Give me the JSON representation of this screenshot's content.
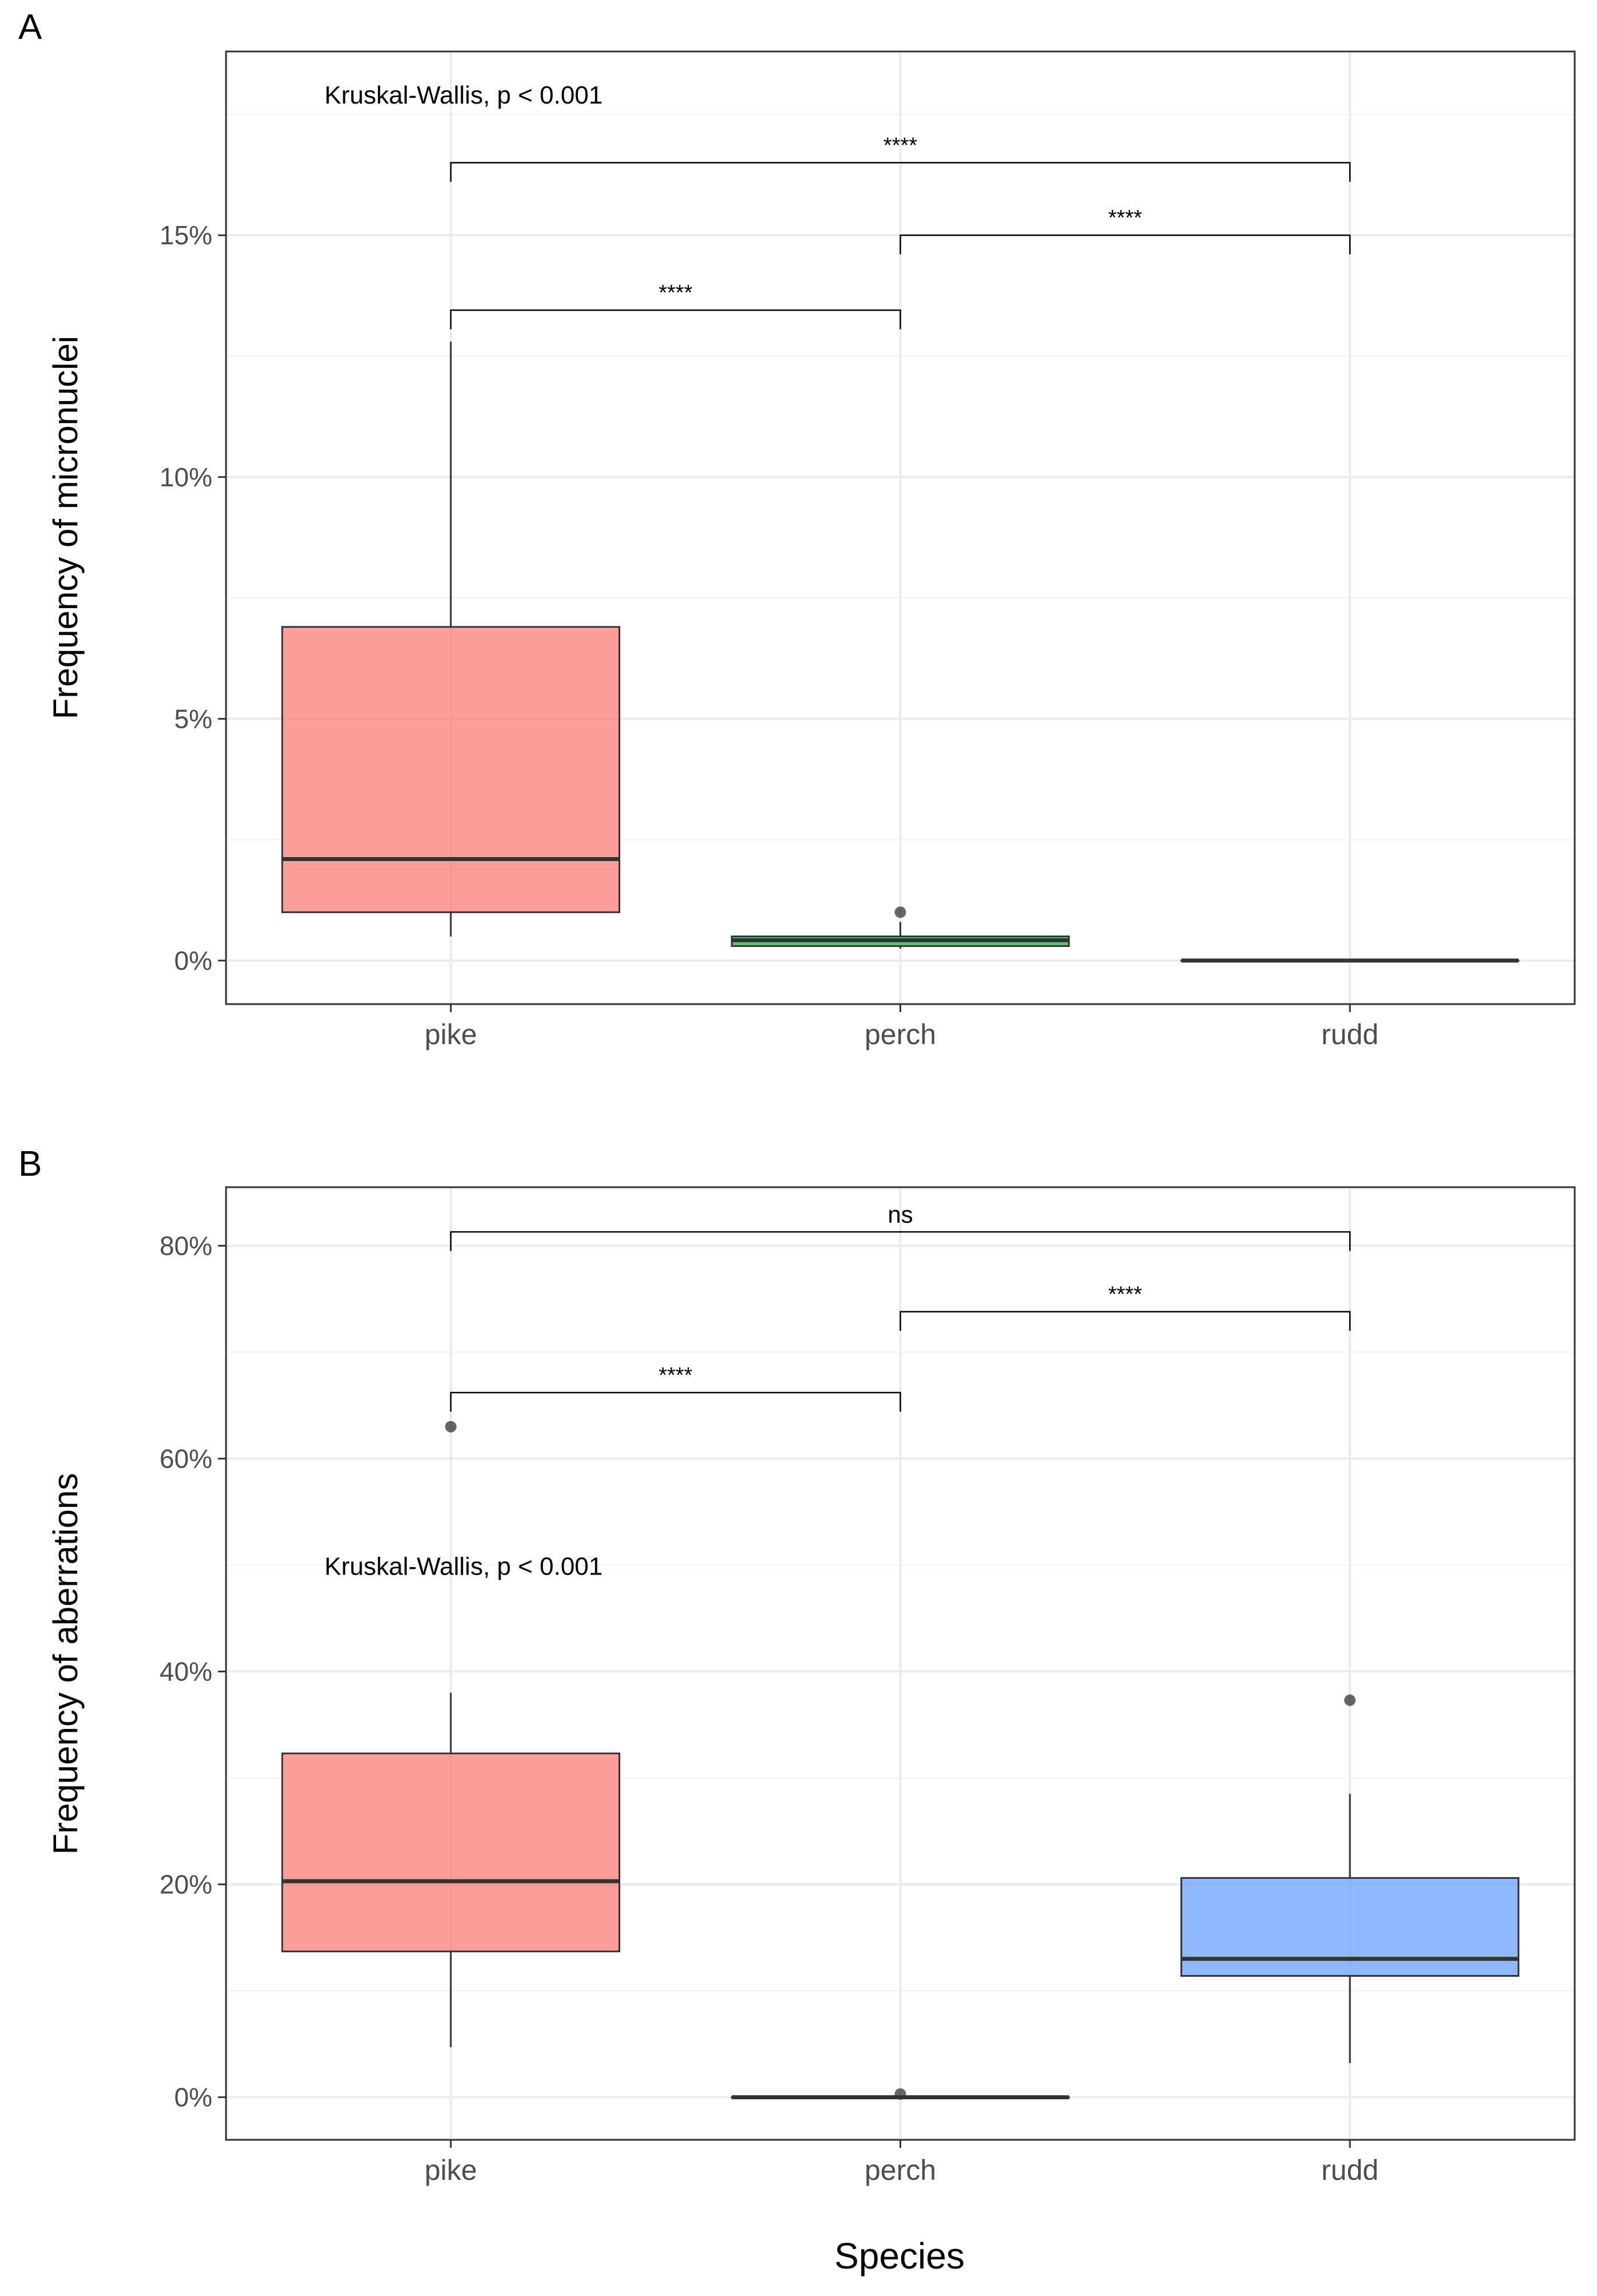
{
  "figure": {
    "xlabel": "Species"
  },
  "chart_data": [
    {
      "panel": "A",
      "type": "box",
      "ylabel": "Frequency of micronuclei",
      "categories": [
        "pike",
        "perch",
        "rudd"
      ],
      "ylim": [
        -0.009,
        0.188
      ],
      "yticks": [
        0,
        0.05,
        0.1,
        0.15
      ],
      "ytick_labels": [
        "0%",
        "5%",
        "10%",
        "15%"
      ],
      "boxes": [
        {
          "category": "pike",
          "lower_whisker": 0.005,
          "q1": 0.01,
          "median": 0.021,
          "q3": 0.069,
          "upper_whisker": 0.128,
          "outliers": [],
          "fill": "#F8766D"
        },
        {
          "category": "perch",
          "lower_whisker": 0.0025,
          "q1": 0.003,
          "median": 0.0042,
          "q3": 0.005,
          "upper_whisker": 0.008,
          "outliers": [
            0.01
          ],
          "fill": "#00BA38"
        },
        {
          "category": "rudd",
          "lower_whisker": 0.0,
          "q1": 0.0,
          "median": 0.0,
          "q3": 0.0,
          "upper_whisker": 0.0,
          "outliers": [],
          "fill": "#619CFF"
        }
      ],
      "test_label": "Kruskal-Wallis, p < 0.001",
      "test_label_y": 0.179,
      "comparisons": [
        {
          "from": "pike",
          "to": "rudd",
          "y": 0.165,
          "label": "****"
        },
        {
          "from": "perch",
          "to": "rudd",
          "y": 0.15,
          "label": "****"
        },
        {
          "from": "pike",
          "to": "perch",
          "y": 0.1345,
          "label": "****"
        }
      ]
    },
    {
      "panel": "B",
      "type": "box",
      "ylabel": "Frequency of aberrations",
      "categories": [
        "pike",
        "perch",
        "rudd"
      ],
      "ylim": [
        -0.04,
        0.855
      ],
      "yticks": [
        0,
        0.2,
        0.4,
        0.6,
        0.8
      ],
      "ytick_labels": [
        "0%",
        "20%",
        "40%",
        "60%",
        "80%"
      ],
      "boxes": [
        {
          "category": "pike",
          "lower_whisker": 0.047,
          "q1": 0.137,
          "median": 0.203,
          "q3": 0.323,
          "upper_whisker": 0.38,
          "outliers": [
            0.63
          ],
          "fill": "#F8766D"
        },
        {
          "category": "perch",
          "lower_whisker": 0.0,
          "q1": 0.0,
          "median": 0.0,
          "q3": 0.0,
          "upper_whisker": 0.0,
          "outliers": [
            0.003
          ],
          "fill": "#00BA38"
        },
        {
          "category": "rudd",
          "lower_whisker": 0.032,
          "q1": 0.114,
          "median": 0.13,
          "q3": 0.206,
          "upper_whisker": 0.285,
          "outliers": [
            0.373
          ],
          "fill": "#619CFF"
        }
      ],
      "test_label": "Kruskal-Wallis, p < 0.001",
      "test_label_y": 0.499,
      "comparisons": [
        {
          "from": "pike",
          "to": "rudd",
          "y": 0.813,
          "label": "ns"
        },
        {
          "from": "perch",
          "to": "rudd",
          "y": 0.738,
          "label": "****"
        },
        {
          "from": "pike",
          "to": "perch",
          "y": 0.662,
          "label": "****"
        }
      ]
    }
  ]
}
